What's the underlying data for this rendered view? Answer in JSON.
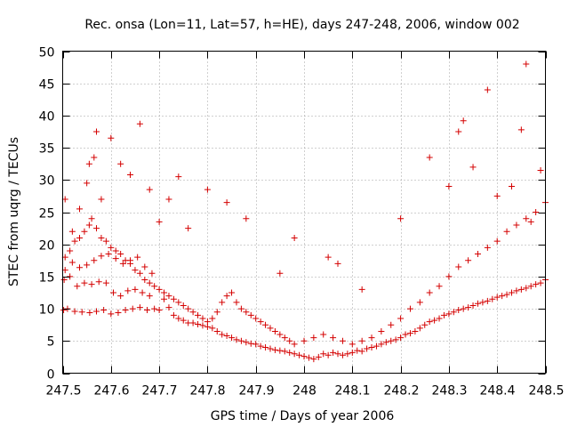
{
  "chart_data": {
    "type": "scatter",
    "title": "Rec. onsa (Lon=11, Lat=57, h=HE), days 247-248, 2006, window 002",
    "xlabel": "GPS time / Days of year 2006",
    "ylabel": "STEC from uqrg / TECUs",
    "xlim": [
      247.5,
      248.5
    ],
    "ylim": [
      0,
      50
    ],
    "x_ticks": [
      247.5,
      247.6,
      247.7,
      247.8,
      247.9,
      248.0,
      248.1,
      248.2,
      248.3,
      248.4,
      248.5
    ],
    "x_tick_labels": [
      "247.5",
      "247.6",
      "247.7",
      "247.8",
      "247.9",
      "248",
      "248.1",
      "248.2",
      "248.3",
      "248.4",
      "248.5"
    ],
    "y_ticks": [
      0,
      5,
      10,
      15,
      20,
      25,
      30,
      35,
      40,
      45,
      50
    ],
    "y_tick_labels": [
      "0",
      "5",
      "10",
      "15",
      "20",
      "25",
      "30",
      "35",
      "40",
      "45",
      "50"
    ],
    "grid": true,
    "marker": "plus",
    "color": "#d40000",
    "series": [
      {
        "x": [
          247.502,
          247.503,
          247.505,
          247.51,
          247.515,
          247.52,
          247.525,
          247.53,
          247.535,
          247.54,
          247.545,
          247.55,
          247.556,
          247.56,
          247.565,
          247.57,
          247.575,
          247.58,
          247.585,
          247.59,
          247.595,
          247.6,
          247.605,
          247.61,
          247.615,
          247.62,
          247.625,
          247.63,
          247.635,
          247.64,
          247.645,
          247.65,
          247.655,
          247.66,
          247.665,
          247.67,
          247.675,
          247.68,
          247.685,
          247.69,
          247.7,
          247.71,
          247.72,
          247.73,
          247.74,
          247.75,
          247.76,
          247.77,
          247.78,
          247.79,
          247.8,
          247.81,
          247.82,
          247.83,
          247.84,
          247.85,
          247.86,
          247.87,
          247.88,
          247.89,
          247.9,
          247.91,
          247.92,
          247.93,
          247.94,
          247.95,
          247.96,
          247.97,
          247.98,
          247.99,
          248.0,
          248.01,
          248.02,
          248.03,
          248.04,
          248.05,
          248.06,
          248.07,
          248.08,
          248.09,
          248.1,
          248.11,
          248.12,
          248.13,
          248.14,
          248.15,
          248.16,
          248.17,
          248.18,
          248.19,
          248.2,
          248.21,
          248.22,
          248.23,
          248.24,
          248.25,
          248.26,
          248.27,
          248.28,
          248.29,
          248.3,
          248.31,
          248.32,
          248.33,
          248.34,
          248.35,
          248.36,
          248.37,
          248.38,
          248.39,
          248.4,
          248.41,
          248.42,
          248.43,
          248.44,
          248.45,
          248.46,
          248.47,
          248.48,
          248.49,
          248.5
        ],
        "y": [
          9.8,
          14.5,
          16.0,
          10.0,
          15.0,
          17.2,
          9.6,
          13.5,
          16.4,
          9.5,
          14.0,
          16.8,
          9.4,
          13.8,
          17.5,
          9.6,
          14.2,
          18.2,
          9.8,
          14.0,
          18.5,
          9.2,
          12.5,
          17.8,
          9.4,
          12.0,
          17.0,
          9.8,
          12.8,
          17.5,
          10.0,
          13.0,
          18.0,
          10.2,
          12.5,
          16.5,
          9.8,
          12.0,
          15.5,
          10.0,
          9.8,
          11.5,
          10.2,
          9.0,
          8.5,
          8.2,
          7.8,
          7.8,
          7.6,
          7.4,
          7.2,
          7.0,
          6.5,
          6.0,
          5.8,
          5.5,
          5.2,
          5.0,
          4.8,
          4.6,
          4.5,
          4.2,
          4.0,
          3.8,
          3.6,
          3.5,
          3.4,
          3.2,
          3.0,
          2.8,
          2.6,
          2.4,
          2.2,
          2.5,
          3.0,
          2.8,
          3.2,
          3.0,
          2.8,
          3.0,
          3.2,
          3.5,
          3.4,
          3.8,
          4.0,
          4.2,
          4.5,
          4.8,
          5.0,
          5.2,
          5.5,
          6.0,
          6.2,
          6.5,
          7.0,
          7.5,
          8.0,
          8.2,
          8.5,
          9.0,
          9.2,
          9.5,
          9.8,
          10.0,
          10.2,
          10.5,
          10.8,
          11.0,
          11.2,
          11.5,
          11.8,
          12.0,
          12.2,
          12.5,
          12.8,
          13.0,
          13.2,
          13.5,
          13.8,
          14.0,
          14.5
        ]
      },
      {
        "x": [
          247.505,
          247.515,
          247.525,
          247.535,
          247.545,
          247.555,
          247.56,
          247.57,
          247.58,
          247.59,
          247.6,
          247.61,
          247.62,
          247.63,
          247.64,
          247.65,
          247.66,
          247.67,
          247.68,
          247.69,
          247.7,
          247.71,
          247.72,
          247.73,
          247.74,
          247.75,
          247.76,
          247.77,
          247.78,
          247.79,
          247.8,
          247.81,
          247.82,
          247.83,
          247.84,
          247.85,
          247.86,
          247.87,
          247.88,
          247.89,
          247.9,
          247.91,
          247.92,
          247.93,
          247.94,
          247.95,
          247.96,
          247.97,
          247.98,
          248.0,
          248.02,
          248.04,
          248.06,
          248.08,
          248.1,
          248.12,
          248.14,
          248.16,
          248.18,
          248.2,
          248.22,
          248.24,
          248.26,
          248.28,
          248.3,
          248.32,
          248.34,
          248.36,
          248.38,
          248.4,
          248.42,
          248.44,
          248.46,
          248.48,
          248.5
        ],
        "y": [
          18.0,
          19.0,
          20.5,
          21.0,
          22.0,
          23.0,
          24.0,
          22.5,
          21.0,
          20.5,
          19.5,
          19.0,
          18.5,
          17.5,
          17.0,
          16.0,
          15.5,
          14.5,
          14.0,
          13.5,
          13.0,
          12.5,
          12.0,
          11.5,
          11.0,
          10.5,
          10.0,
          9.5,
          9.0,
          8.5,
          8.0,
          8.5,
          9.5,
          11.0,
          12.0,
          12.5,
          11.0,
          10.0,
          9.5,
          9.0,
          8.5,
          8.0,
          7.5,
          7.0,
          6.5,
          6.0,
          5.5,
          5.0,
          4.5,
          5.0,
          5.5,
          6.0,
          5.5,
          5.0,
          4.5,
          5.0,
          5.5,
          6.5,
          7.5,
          8.5,
          10.0,
          11.0,
          12.5,
          13.5,
          15.0,
          16.5,
          17.5,
          18.5,
          19.5,
          20.5,
          22.0,
          23.0,
          24.0,
          25.0,
          26.5
        ]
      },
      {
        "x": [
          247.505,
          247.52,
          247.535,
          247.55,
          247.555,
          247.565,
          247.57,
          247.58,
          247.6,
          247.62,
          247.64,
          247.66,
          247.68,
          247.7,
          247.72,
          247.74,
          247.76,
          247.8,
          247.84,
          247.88,
          247.95,
          247.98,
          248.05,
          248.07,
          248.12,
          248.2,
          248.26,
          248.3,
          248.32,
          248.33,
          248.35,
          248.38,
          248.4,
          248.43,
          248.45,
          248.46,
          248.47,
          248.49
        ],
        "y": [
          27.0,
          22.0,
          25.5,
          29.5,
          32.5,
          33.5,
          37.5,
          27.0,
          36.5,
          32.5,
          30.8,
          38.7,
          28.5,
          23.5,
          27.0,
          30.5,
          22.5,
          28.5,
          26.5,
          24.0,
          15.5,
          21.0,
          18.0,
          17.0,
          13.0,
          24.0,
          33.5,
          29.0,
          37.5,
          39.2,
          32.0,
          44.0,
          27.5,
          29.0,
          37.8,
          48.0,
          23.5,
          31.5
        ]
      }
    ]
  }
}
